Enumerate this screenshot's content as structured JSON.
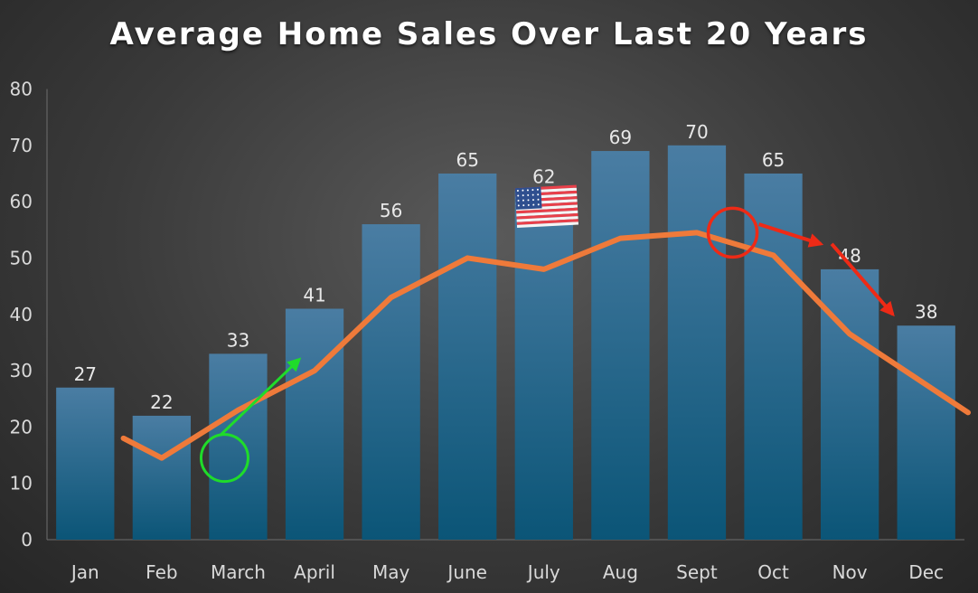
{
  "chart_data": {
    "type": "bar",
    "title": "Average Home Sales Over Last 20 Years",
    "categories": [
      "Jan",
      "Feb",
      "March",
      "April",
      "May",
      "June",
      "July",
      "Aug",
      "Sept",
      "Oct",
      "Nov",
      "Dec"
    ],
    "series": [
      {
        "type": "bar",
        "values": [
          27,
          22,
          33,
          41,
          56,
          65,
          62,
          69,
          70,
          65,
          48,
          38
        ]
      },
      {
        "type": "line",
        "values": [
          18,
          14.5,
          23,
          30,
          43,
          50,
          48,
          53.5,
          54.5,
          50.5,
          36.5,
          27.5
        ]
      }
    ],
    "ylim": [
      0,
      80
    ],
    "yticks": [
      0,
      10,
      20,
      30,
      40,
      50,
      60,
      70,
      80
    ],
    "data_labels": true,
    "grid": false,
    "colors": {
      "bar_top": "#4a7da3",
      "bar_bottom": "#0b5577",
      "line": "#ef7a3a",
      "green_marker": "#1fdc2a",
      "red_marker": "#ee2a16"
    },
    "annotations": [
      {
        "type": "circle",
        "color": "green",
        "category": "March",
        "value": 14.5
      },
      {
        "type": "arrow",
        "color": "green",
        "direction": "up-right",
        "from_category": "March",
        "to_category": "April"
      },
      {
        "type": "circle",
        "color": "red",
        "category": "Oct",
        "value": 54.5
      },
      {
        "type": "arrow",
        "color": "red",
        "direction": "down-right",
        "from_category": "Oct",
        "to_category": "Nov"
      },
      {
        "type": "arrow",
        "color": "red",
        "direction": "down-right",
        "from_category": "Nov",
        "to_category": "Dec"
      },
      {
        "type": "emoji",
        "icon": "us-flag-icon",
        "category": "July"
      }
    ]
  }
}
